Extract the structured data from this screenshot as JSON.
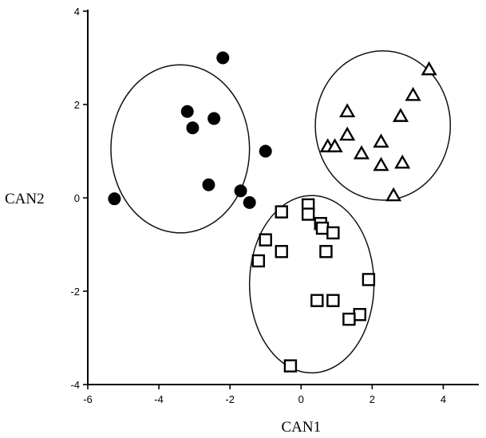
{
  "chart_data": {
    "type": "scatter",
    "title": "",
    "xlabel": "CAN1",
    "ylabel": "CAN2",
    "xlim": [
      -6,
      5
    ],
    "ylim": [
      -4,
      4
    ],
    "x_ticks": [
      -6,
      -4,
      -2,
      0,
      2,
      4
    ],
    "x_tick_labels": [
      "-6",
      "-4",
      "-2",
      "0",
      "2",
      "4"
    ],
    "y_ticks": [
      -4,
      -2,
      0,
      2,
      4
    ],
    "y_tick_labels": [
      "-4",
      "-2",
      "0",
      "2",
      "4"
    ],
    "grid": false,
    "legend": "none",
    "series": [
      {
        "marker": "filled-circle",
        "points": [
          {
            "x": -2.2,
            "y": 3.0
          },
          {
            "x": -3.2,
            "y": 1.85
          },
          {
            "x": -3.05,
            "y": 1.5
          },
          {
            "x": -2.45,
            "y": 1.7
          },
          {
            "x": -1.0,
            "y": 1.0
          },
          {
            "x": -2.6,
            "y": 0.28
          },
          {
            "x": -1.7,
            "y": 0.15
          },
          {
            "x": -1.45,
            "y": -0.1
          },
          {
            "x": -5.25,
            "y": -0.02
          }
        ],
        "ellipse": {
          "cx": -3.4,
          "cy": 1.05,
          "rx": 1.95,
          "ry": 1.8
        }
      },
      {
        "marker": "open-triangle",
        "points": [
          {
            "x": 3.6,
            "y": 2.75
          },
          {
            "x": 3.15,
            "y": 2.2
          },
          {
            "x": 2.8,
            "y": 1.75
          },
          {
            "x": 1.3,
            "y": 1.85
          },
          {
            "x": 1.3,
            "y": 1.35
          },
          {
            "x": 0.75,
            "y": 1.1
          },
          {
            "x": 0.95,
            "y": 1.1
          },
          {
            "x": 2.25,
            "y": 1.2
          },
          {
            "x": 1.7,
            "y": 0.95
          },
          {
            "x": 2.85,
            "y": 0.75
          },
          {
            "x": 2.25,
            "y": 0.7
          },
          {
            "x": 2.6,
            "y": 0.05
          }
        ],
        "ellipse": {
          "cx": 2.3,
          "cy": 1.55,
          "rx": 1.9,
          "ry": 1.6
        }
      },
      {
        "marker": "open-square",
        "points": [
          {
            "x": 0.2,
            "y": -0.15
          },
          {
            "x": -0.55,
            "y": -0.3
          },
          {
            "x": 0.2,
            "y": -0.35
          },
          {
            "x": 0.55,
            "y": -0.55
          },
          {
            "x": 0.6,
            "y": -0.65
          },
          {
            "x": 0.9,
            "y": -0.75
          },
          {
            "x": -1.0,
            "y": -0.9
          },
          {
            "x": -0.55,
            "y": -1.15
          },
          {
            "x": 0.7,
            "y": -1.15
          },
          {
            "x": -1.2,
            "y": -1.35
          },
          {
            "x": 1.9,
            "y": -1.75
          },
          {
            "x": 0.45,
            "y": -2.2
          },
          {
            "x": 0.9,
            "y": -2.2
          },
          {
            "x": 1.65,
            "y": -2.5
          },
          {
            "x": 1.35,
            "y": -2.6
          },
          {
            "x": -0.3,
            "y": -3.6
          }
        ],
        "ellipse": {
          "cx": 0.3,
          "cy": -1.85,
          "rx": 1.75,
          "ry": 1.9
        }
      }
    ]
  }
}
